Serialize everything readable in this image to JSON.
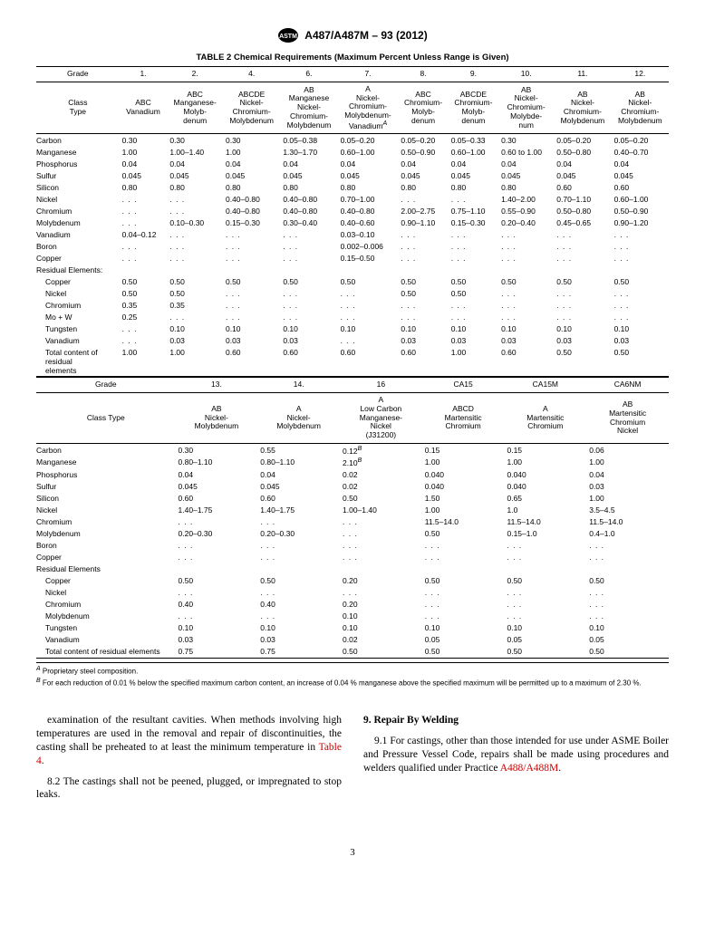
{
  "doc_header": "A487/A487M – 93 (2012)",
  "table_title": "TABLE 2 Chemical Requirements (Maximum Percent Unless Range is Given)",
  "t1": {
    "grade_label": "Grade",
    "grades": [
      "1.",
      "2.",
      "4.",
      "6.",
      "7.",
      "8.",
      "9.",
      "10.",
      "11.",
      "12."
    ],
    "class_label": "Class\nType",
    "classes": [
      "ABC\nVanadium",
      "ABC\nManganese-\nMolyb-\ndenum",
      "ABCDE\nNickel-\nChromium-\nMolybdenum",
      "AB\nManganese\nNickel-\nChromium-\nMolybdenum",
      "A\nNickel-\nChromium-\nMolybdenum-\nVanadium",
      "ABC\nChromium-\nMolyb-\ndenum",
      "ABCDE\nChromium-\nMolyb-\ndenum",
      "AB\nNickel-\nChromium-\nMolybde-\nnum",
      "AB\nNickel-\nChromium-\nMolybdenum",
      "AB\nNickel-\nChromium-\nMolybdenum"
    ],
    "class_sup": [
      "",
      "",
      "",
      "",
      "A",
      "",
      "",
      "",
      "",
      ""
    ],
    "rows": [
      {
        "l": "Carbon",
        "v": [
          "0.30",
          "0.30",
          "0.30",
          "0.05–0.38",
          "0.05–0.20",
          "0.05–0.20",
          "0.05–0.33",
          "0.30",
          "0.05–0.20",
          "0.05–0.20"
        ]
      },
      {
        "l": "Manganese",
        "v": [
          "1.00",
          "1.00–1.40",
          "1.00",
          "1.30–1.70",
          "0.60–1.00",
          "0.50–0.90",
          "0.60–1.00",
          "0.60 to 1.00",
          "0.50–0.80",
          "0.40–0.70"
        ]
      },
      {
        "l": "Phosphorus",
        "v": [
          "0.04",
          "0.04",
          "0.04",
          "0.04",
          "0.04",
          "0.04",
          "0.04",
          "0.04",
          "0.04",
          "0.04"
        ]
      },
      {
        "l": "Sulfur",
        "v": [
          "0.045",
          "0.045",
          "0.045",
          "0.045",
          "0.045",
          "0.045",
          "0.045",
          "0.045",
          "0.045",
          "0.045"
        ]
      },
      {
        "l": "Silicon",
        "v": [
          "0.80",
          "0.80",
          "0.80",
          "0.80",
          "0.80",
          "0.80",
          "0.80",
          "0.80",
          "0.60",
          "0.60"
        ]
      },
      {
        "l": "Nickel",
        "v": [
          ". . .",
          ". . .",
          "0.40–0.80",
          "0.40–0.80",
          "0.70–1.00",
          ". . .",
          ". . .",
          "1.40–2.00",
          "0.70–1.10",
          "0.60–1.00"
        ]
      },
      {
        "l": "Chromium",
        "v": [
          ". . .",
          ". . .",
          "0.40–0.80",
          "0.40–0.80",
          "0.40–0.80",
          "2.00–2.75",
          "0.75–1.10",
          "0.55–0.90",
          "0.50–0.80",
          "0.50–0.90"
        ]
      },
      {
        "l": "Molybdenum",
        "v": [
          ". . .",
          "0.10–0.30",
          "0.15–0.30",
          "0.30–0.40",
          "0.40–0.60",
          "0.90–1.10",
          "0.15–0.30",
          "0.20–0.40",
          "0.45–0.65",
          "0.90–1.20"
        ]
      },
      {
        "l": "Vanadium",
        "v": [
          "0.04–0.12",
          ". . .",
          ". . .",
          ". . .",
          "0.03–0.10",
          ". . .",
          ". . .",
          ". . .",
          ". . .",
          ". . ."
        ]
      },
      {
        "l": "Boron",
        "v": [
          ". . .",
          ". . .",
          ". . .",
          ". . .",
          "0.002–0.006",
          ". . .",
          ". . .",
          ". . .",
          ". . .",
          ". . ."
        ]
      },
      {
        "l": "Copper",
        "v": [
          ". . .",
          ". . .",
          ". . .",
          ". . .",
          "0.15–0.50",
          ". . .",
          ". . .",
          ". . .",
          ". . .",
          ". . ."
        ]
      },
      {
        "l": "Residual Elements:",
        "v": [
          "",
          "",
          "",
          "",
          "",
          "",
          "",
          "",
          "",
          ""
        ]
      },
      {
        "l": "Copper",
        "i": true,
        "v": [
          "0.50",
          "0.50",
          "0.50",
          "0.50",
          "0.50",
          "0.50",
          "0.50",
          "0.50",
          "0.50",
          "0.50"
        ]
      },
      {
        "l": "Nickel",
        "i": true,
        "v": [
          "0.50",
          "0.50",
          ". . .",
          ". . .",
          ". . .",
          "0.50",
          "0.50",
          ". . .",
          ". . .",
          ". . ."
        ]
      },
      {
        "l": "Chromium",
        "i": true,
        "v": [
          "0.35",
          "0.35",
          ". . .",
          ". . .",
          ". . .",
          ". . .",
          ". . .",
          ". . .",
          ". . .",
          ". . ."
        ]
      },
      {
        "l": "Mo + W",
        "i": true,
        "v": [
          "0.25",
          ". . .",
          ". . .",
          ". . .",
          ". . .",
          ". . .",
          ". . .",
          ". . .",
          ". . .",
          ". . ."
        ]
      },
      {
        "l": "Tungsten",
        "i": true,
        "v": [
          ". . .",
          "0.10",
          "0.10",
          "0.10",
          "0.10",
          "0.10",
          "0.10",
          "0.10",
          "0.10",
          "0.10"
        ]
      },
      {
        "l": "Vanadium",
        "i": true,
        "v": [
          ". . .",
          "0.03",
          "0.03",
          "0.03",
          ". . .",
          "0.03",
          "0.03",
          "0.03",
          "0.03",
          "0.03"
        ]
      },
      {
        "l": "Total content of\nresidual\nelements",
        "i": true,
        "v": [
          "1.00",
          "1.00",
          "0.60",
          "0.60",
          "0.60",
          "0.60",
          "1.00",
          "0.60",
          "0.50",
          "0.50"
        ]
      }
    ]
  },
  "t2": {
    "grades": [
      "13.",
      "14.",
      "16",
      "CA15",
      "CA15M",
      "CA6NM"
    ],
    "class_label": "Class Type",
    "classes": [
      "AB\nNickel-\nMolybdenum",
      "A\nNickel-\nMolybdenum",
      "A\nLow Carbon\nManganese-\nNickel\n(J31200)",
      "ABCD\nMartensitic\nChromium",
      "A\nMartensitic\nChromium",
      "AB\nMartensitic\nChromium\nNickel"
    ],
    "rows": [
      {
        "l": "Carbon",
        "v": [
          "0.30",
          "0.55",
          "0.12",
          "0.15",
          "0.15",
          "0.06"
        ],
        "s": [
          "",
          "",
          "B",
          "",
          "",
          ""
        ]
      },
      {
        "l": "Manganese",
        "v": [
          "0.80–1.10",
          "0.80–1.10",
          "2.10",
          "1.00",
          "1.00",
          "1.00"
        ],
        "s": [
          "",
          "",
          "B",
          "",
          "",
          ""
        ]
      },
      {
        "l": "Phosphorus",
        "v": [
          "0.04",
          "0.04",
          "0.02",
          "0.040",
          "0.040",
          "0.04"
        ]
      },
      {
        "l": "Sulfur",
        "v": [
          "0.045",
          "0.045",
          "0.02",
          "0.040",
          "0.040",
          "0.03"
        ]
      },
      {
        "l": "Silicon",
        "v": [
          "0.60",
          "0.60",
          "0.50",
          "1.50",
          "0.65",
          "1.00"
        ]
      },
      {
        "l": "Nickel",
        "v": [
          "1.40–1.75",
          "1.40–1.75",
          "1.00–1.40",
          "1.00",
          "1.0",
          "3.5–4.5"
        ]
      },
      {
        "l": "Chromium",
        "v": [
          ". . .",
          ". . .",
          ". . .",
          "11.5–14.0",
          "11.5–14.0",
          "11.5–14.0"
        ]
      },
      {
        "l": "Molybdenum",
        "v": [
          "0.20–0.30",
          "0.20–0.30",
          ". . .",
          "0.50",
          "0.15–1.0",
          "0.4–1.0"
        ]
      },
      {
        "l": "Boron",
        "v": [
          ". . .",
          ". . .",
          ". . .",
          ". . .",
          ". . .",
          ". . ."
        ]
      },
      {
        "l": "Copper",
        "v": [
          ". . .",
          ". . .",
          ". . .",
          ". . .",
          ". . .",
          ". . ."
        ]
      },
      {
        "l": "Residual Elements",
        "v": [
          "",
          "",
          "",
          "",
          "",
          ""
        ]
      },
      {
        "l": "Copper",
        "i": true,
        "v": [
          "0.50",
          "0.50",
          "0.20",
          "0.50",
          "0.50",
          "0.50"
        ]
      },
      {
        "l": "Nickel",
        "i": true,
        "v": [
          ". . .",
          ". . .",
          ". . .",
          ". . .",
          ". . .",
          ". . ."
        ]
      },
      {
        "l": "Chromium",
        "i": true,
        "v": [
          "0.40",
          "0.40",
          "0.20",
          ". . .",
          ". . .",
          ". . ."
        ]
      },
      {
        "l": "Molybdenum",
        "i": true,
        "v": [
          ". . .",
          ". . .",
          "0.10",
          ". . .",
          ". . .",
          ". . ."
        ]
      },
      {
        "l": "Tungsten",
        "i": true,
        "v": [
          "0.10",
          "0.10",
          "0.10",
          "0.10",
          "0.10",
          "0.10"
        ]
      },
      {
        "l": "Vanadium",
        "i": true,
        "v": [
          "0.03",
          "0.03",
          "0.02",
          "0.05",
          "0.05",
          "0.05"
        ]
      },
      {
        "l": "Total content of residual elements",
        "i": true,
        "v": [
          "0.75",
          "0.75",
          "0.50",
          "0.50",
          "0.50",
          "0.50"
        ]
      }
    ]
  },
  "footnotes": {
    "a": "Proprietary steel composition.",
    "b": "For each reduction of 0.01 % below the specified maximum carbon content, an increase of 0.04 % manganese above the specified maximum will be permitted up to a maximum of 2.30 %."
  },
  "body": {
    "p1_a": "examination of the resultant cavities. When methods involving high temperatures are used in the removal and repair of discontinuities, the casting shall be preheated to at least the minimum temperature in ",
    "p1_link": "Table 4",
    "p1_b": ".",
    "p2_a": "8.2 The castings shall not be peened, plugged, or impregnated to stop leaks.",
    "s9": "9. Repair By Welding",
    "p3_a": "9.1 For castings, other than those intended for use under ASME Boiler and Pressure Vessel Code, repairs shall be made using procedures and welders qualified under Practice ",
    "p3_link": "A488/A488M",
    "p3_b": "."
  },
  "page": "3"
}
